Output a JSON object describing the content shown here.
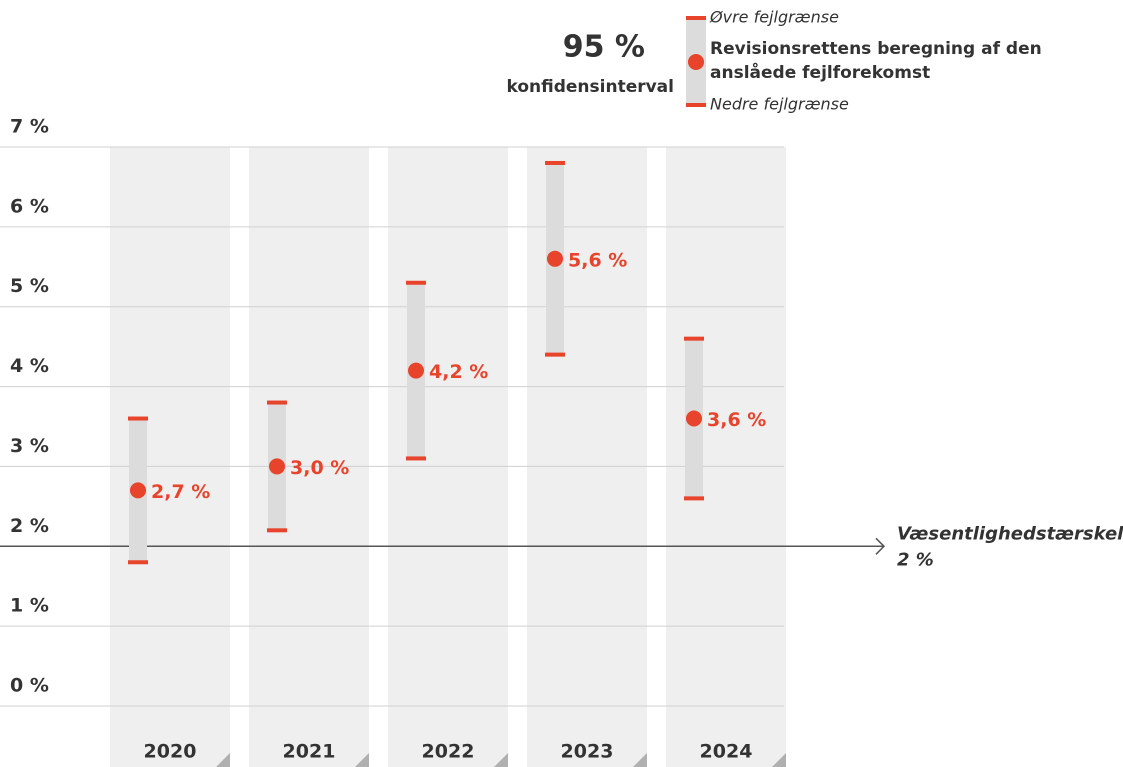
{
  "chart_data": {
    "type": "interval",
    "categories": [
      "2020",
      "2021",
      "2022",
      "2023",
      "2024"
    ],
    "values": [
      2.7,
      3.0,
      4.2,
      5.6,
      3.6
    ],
    "value_labels": [
      "2,7 %",
      "3,0 %",
      "4,2 %",
      "5,6 %",
      "3,6 %"
    ],
    "upper": [
      3.6,
      3.8,
      5.3,
      6.8,
      4.6
    ],
    "lower": [
      1.8,
      2.2,
      3.1,
      4.4,
      2.6
    ],
    "color": "#e8432b",
    "ylim": [
      0,
      7
    ],
    "yticks": [
      {
        "value": 0,
        "label": "0 %"
      },
      {
        "value": 1,
        "label": "1 %"
      },
      {
        "value": 2,
        "label": "2 %"
      },
      {
        "value": 3,
        "label": "3 %"
      },
      {
        "value": 4,
        "label": "4 %"
      },
      {
        "value": 5,
        "label": "5 %"
      },
      {
        "value": 6,
        "label": "6 %"
      },
      {
        "value": 7,
        "label": "7 %"
      }
    ],
    "grid": true,
    "threshold": {
      "value": 2,
      "label": "Væsentlighedstærskel:",
      "value_label": "2 %"
    },
    "legend": {
      "level": "95 %",
      "interval_label": "konfidensinterval",
      "upper_label": "Øvre fejlgrænse",
      "point_label": [
        "Revisionsrettens beregning af den",
        "anslåede fejlforekomst"
      ],
      "lower_label": "Nedre fejlgrænse"
    }
  }
}
